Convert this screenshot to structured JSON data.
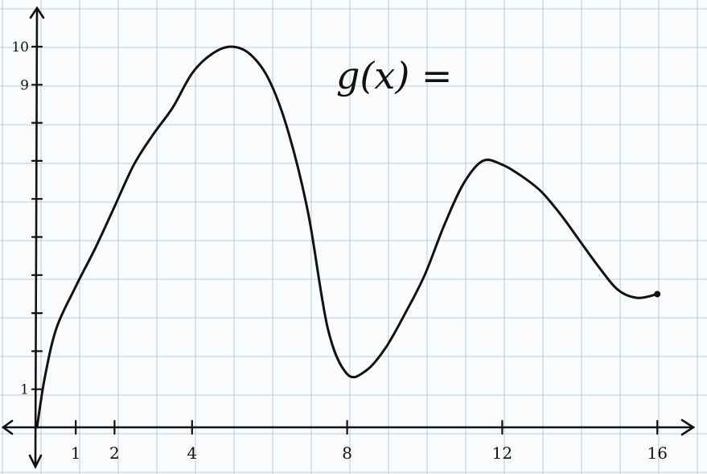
{
  "chart_data": {
    "type": "line",
    "title": "g(x) =",
    "xlabel": "",
    "ylabel": "",
    "xlim": [
      0,
      17
    ],
    "ylim": [
      0,
      10.6
    ],
    "grid": true,
    "x_tick_labels": [
      {
        "value": 1,
        "label": "1"
      },
      {
        "value": 2,
        "label": "2"
      },
      {
        "value": 4,
        "label": "4"
      },
      {
        "value": 8,
        "label": "8"
      },
      {
        "value": 12,
        "label": "12"
      },
      {
        "value": 16,
        "label": "16"
      }
    ],
    "y_tick_labels": [
      {
        "value": 1,
        "label": "1"
      },
      {
        "value": 9,
        "label": "9"
      },
      {
        "value": 10,
        "label": "10"
      }
    ],
    "x_minor_ticks": [
      1,
      2,
      4,
      8,
      12,
      16
    ],
    "y_minor_ticks": [
      1,
      2,
      3,
      4,
      5,
      6,
      7,
      8,
      9,
      10
    ],
    "series": [
      {
        "x": [
          0,
          0.2,
          0.5,
          1,
          1.5,
          2,
          2.5,
          3,
          3.5,
          4,
          4.5,
          5,
          5.5,
          6,
          6.5,
          7,
          7.5,
          8,
          8.5,
          9,
          9.5,
          10,
          10.5,
          11,
          11.5,
          12,
          12.5,
          13,
          13.5,
          14,
          14.5,
          15,
          15.5,
          16
        ],
        "y": [
          0,
          1.3,
          2.6,
          3.7,
          4.7,
          5.8,
          6.9,
          7.7,
          8.4,
          9.3,
          9.8,
          10,
          9.8,
          9.1,
          7.7,
          5.6,
          2.6,
          1.4,
          1.5,
          2.1,
          3.0,
          4.0,
          5.3,
          6.4,
          7.0,
          6.9,
          6.6,
          6.2,
          5.6,
          4.9,
          4.2,
          3.6,
          3.4,
          3.5
        ]
      }
    ]
  }
}
